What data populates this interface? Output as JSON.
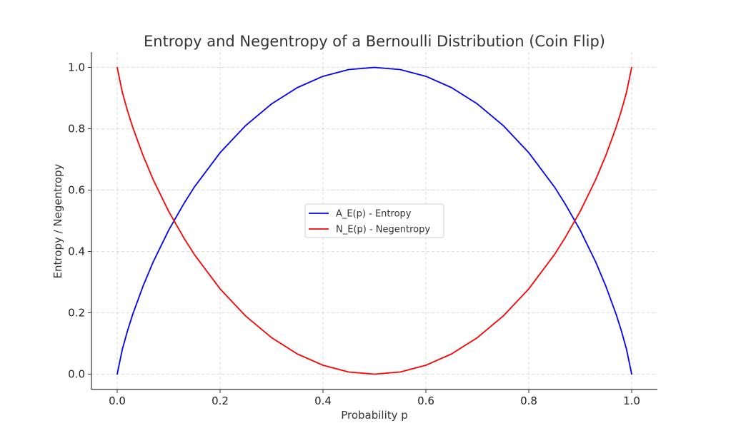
{
  "chart_data": {
    "type": "line",
    "title": "Entropy and Negentropy of a Bernoulli Distribution (Coin Flip)",
    "xlabel": "Probability p",
    "ylabel": "Entropy / Negentropy",
    "xlim": [
      -0.05,
      1.05
    ],
    "ylim": [
      -0.05,
      1.05
    ],
    "xticks": [
      0.0,
      0.2,
      0.4,
      0.6,
      0.8,
      1.0
    ],
    "xtick_labels": [
      "0.0",
      "0.2",
      "0.4",
      "0.6",
      "0.8",
      "1.0"
    ],
    "yticks": [
      0.0,
      0.2,
      0.4,
      0.6,
      0.8,
      1.0
    ],
    "ytick_labels": [
      "0.0",
      "0.2",
      "0.4",
      "0.6",
      "0.8",
      "1.0"
    ],
    "grid": true,
    "legend_position": "center",
    "x": [
      0.0,
      0.01,
      0.02,
      0.03,
      0.05,
      0.07,
      0.1,
      0.13,
      0.15,
      0.2,
      0.25,
      0.3,
      0.35,
      0.4,
      0.45,
      0.5,
      0.55,
      0.6,
      0.65,
      0.7,
      0.75,
      0.8,
      0.85,
      0.87,
      0.9,
      0.93,
      0.95,
      0.97,
      0.98,
      0.99,
      1.0
    ],
    "series": [
      {
        "name": "A_E(p) - Entropy",
        "color": "#0000ff",
        "values": [
          0.0,
          0.081,
          0.141,
          0.194,
          0.286,
          0.366,
          0.469,
          0.557,
          0.61,
          0.722,
          0.811,
          0.881,
          0.934,
          0.971,
          0.993,
          1.0,
          0.993,
          0.971,
          0.934,
          0.881,
          0.811,
          0.722,
          0.61,
          0.557,
          0.469,
          0.366,
          0.286,
          0.194,
          0.141,
          0.081,
          0.0
        ]
      },
      {
        "name": "N_E(p) - Negentropy",
        "color": "#ff0000",
        "values": [
          1.0,
          0.919,
          0.859,
          0.806,
          0.714,
          0.634,
          0.531,
          0.443,
          0.39,
          0.278,
          0.189,
          0.119,
          0.066,
          0.029,
          0.007,
          0.0,
          0.007,
          0.029,
          0.066,
          0.119,
          0.189,
          0.278,
          0.39,
          0.443,
          0.531,
          0.634,
          0.714,
          0.806,
          0.859,
          0.919,
          1.0
        ]
      }
    ]
  }
}
